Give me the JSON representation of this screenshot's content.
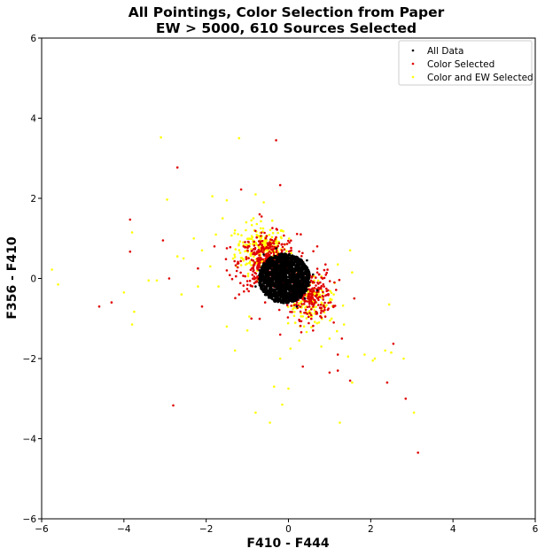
{
  "chart_data": {
    "type": "scatter",
    "title": "All Pointings, Color Selection from Paper",
    "subtitle": "EW > 5000, 610 Sources Selected",
    "xlabel": "F410 - F444",
    "ylabel": "F356 - F410",
    "xlim": [
      -6,
      6
    ],
    "ylim": [
      -6,
      6
    ],
    "xticks": [
      "−6",
      "−4",
      "−2",
      "0",
      "2",
      "4",
      "6"
    ],
    "yticks": [
      "−6",
      "−4",
      "−2",
      "0",
      "2",
      "4",
      "6"
    ],
    "grid": false,
    "legend_position": "top-right",
    "series": [
      {
        "name": "All Data",
        "color": "#000000",
        "core": {
          "center": [
            -0.1,
            0.0
          ],
          "radius": [
            0.62,
            0.62
          ],
          "count": 1400
        },
        "points": [
          [
            -0.6,
            0.6
          ],
          [
            0.4,
            -0.5
          ],
          [
            -0.5,
            -0.4
          ],
          [
            0.45,
            0.45
          ],
          [
            0.6,
            0.1
          ],
          [
            -0.7,
            0.2
          ],
          [
            0.2,
            -0.7
          ],
          [
            -0.3,
            0.75
          ],
          [
            0.7,
            -0.3
          ],
          [
            -0.8,
            -0.2
          ]
        ]
      },
      {
        "name": "Color Selected",
        "color": "#e00000",
        "cloud": [
          {
            "center": [
              -0.5,
              0.4
            ],
            "spread": [
              0.35,
              0.35
            ],
            "count": 420
          },
          {
            "center": [
              0.45,
              -0.4
            ],
            "spread": [
              0.3,
              0.3
            ],
            "count": 280
          }
        ],
        "points": [
          [
            -0.3,
            3.45
          ],
          [
            -2.7,
            2.77
          ],
          [
            -1.15,
            2.22
          ],
          [
            -3.85,
            1.47
          ],
          [
            -3.05,
            0.95
          ],
          [
            -3.85,
            0.67
          ],
          [
            -2.9,
            0.0
          ],
          [
            -4.6,
            -0.7
          ],
          [
            -4.3,
            -0.6
          ],
          [
            -2.1,
            -0.7
          ],
          [
            -2.8,
            -3.17
          ],
          [
            1.2,
            -2.3
          ],
          [
            1.0,
            -2.35
          ],
          [
            2.55,
            -1.63
          ],
          [
            2.4,
            -2.6
          ],
          [
            2.85,
            -3.0
          ],
          [
            3.15,
            -4.35
          ],
          [
            1.5,
            -2.55
          ],
          [
            0.35,
            -2.2
          ],
          [
            -0.2,
            2.33
          ],
          [
            0.8,
            -0.8
          ],
          [
            1.1,
            -1.1
          ],
          [
            -1.5,
            0.2
          ],
          [
            -1.2,
            -0.4
          ],
          [
            0.9,
            0.35
          ],
          [
            1.2,
            -1.9
          ],
          [
            0.6,
            -1.3
          ],
          [
            -0.9,
            -1.0
          ],
          [
            1.6,
            -0.5
          ],
          [
            -2.2,
            0.25
          ],
          [
            -1.8,
            0.8
          ],
          [
            0.3,
            1.1
          ],
          [
            1.3,
            -1.5
          ],
          [
            -0.7,
            1.6
          ],
          [
            0.7,
            0.8
          ],
          [
            -0.2,
            -1.4
          ]
        ]
      },
      {
        "name": "Color and EW Selected",
        "color": "#ffff00",
        "points": [
          [
            -3.1,
            3.52
          ],
          [
            -1.2,
            3.5
          ],
          [
            -1.85,
            2.05
          ],
          [
            -1.5,
            1.95
          ],
          [
            -0.8,
            2.1
          ],
          [
            -2.95,
            1.97
          ],
          [
            -3.8,
            1.15
          ],
          [
            -3.75,
            -0.83
          ],
          [
            -3.8,
            -1.15
          ],
          [
            -4.0,
            -0.35
          ],
          [
            -5.75,
            0.22
          ],
          [
            -5.6,
            -0.15
          ],
          [
            -2.7,
            0.55
          ],
          [
            -2.55,
            0.5
          ],
          [
            -2.3,
            1.0
          ],
          [
            -2.6,
            -0.4
          ],
          [
            -3.2,
            -0.05
          ],
          [
            -3.4,
            -0.05
          ],
          [
            -1.3,
            -1.8
          ],
          [
            -1.5,
            -1.2
          ],
          [
            -0.95,
            -0.95
          ],
          [
            -0.8,
            -3.35
          ],
          [
            -0.45,
            -3.6
          ],
          [
            -0.35,
            -2.7
          ],
          [
            -0.15,
            -3.15
          ],
          [
            0.0,
            -2.75
          ],
          [
            -0.2,
            -2.0
          ],
          [
            0.05,
            -1.75
          ],
          [
            1.25,
            -3.6
          ],
          [
            1.55,
            -2.6
          ],
          [
            2.45,
            -0.65
          ],
          [
            2.05,
            -2.05
          ],
          [
            2.1,
            -2.0
          ],
          [
            2.5,
            -1.85
          ],
          [
            2.35,
            -1.8
          ],
          [
            2.8,
            -2.0
          ],
          [
            3.05,
            -3.35
          ],
          [
            1.85,
            -1.9
          ],
          [
            1.45,
            -1.95
          ],
          [
            1.5,
            0.7
          ],
          [
            1.2,
            0.35
          ],
          [
            1.55,
            0.15
          ],
          [
            1.35,
            -1.15
          ],
          [
            1.0,
            -1.5
          ],
          [
            0.8,
            -1.7
          ],
          [
            -1.6,
            1.5
          ],
          [
            -1.3,
            1.2
          ],
          [
            -0.6,
            1.9
          ],
          [
            -2.1,
            0.7
          ],
          [
            -1.9,
            0.3
          ],
          [
            -1.7,
            -0.2
          ],
          [
            -1.1,
            0.9
          ],
          [
            -0.9,
            1.45
          ],
          [
            1.1,
            -0.4
          ],
          [
            0.9,
            -0.7
          ],
          [
            1.05,
            -1.0
          ],
          [
            -2.2,
            -0.2
          ],
          [
            -1.0,
            -1.3
          ]
        ],
        "cloud": [
          {
            "center": [
              -0.65,
              0.75
            ],
            "spread": [
              0.32,
              0.3
            ],
            "count": 220
          },
          {
            "center": [
              0.55,
              -0.6
            ],
            "spread": [
              0.28,
              0.28
            ],
            "count": 120
          }
        ]
      }
    ]
  }
}
